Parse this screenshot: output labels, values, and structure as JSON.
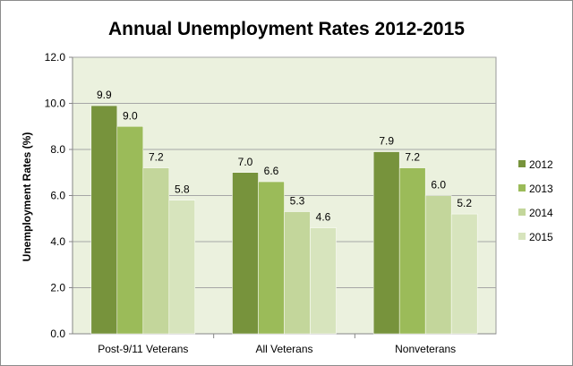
{
  "chart_data": {
    "type": "bar",
    "title": "Annual Unemployment Rates 2012-2015",
    "xlabel": "",
    "ylabel": "Unemployment Rates (%)",
    "ylim": [
      0,
      12
    ],
    "yticks": [
      "0.0",
      "2.0",
      "4.0",
      "6.0",
      "8.0",
      "10.0",
      "12.0"
    ],
    "grid": true,
    "legend_position": "right",
    "plot_background": "#ebf1de",
    "categories": [
      "Post-9/11 Veterans",
      "All Veterans",
      "Nonveterans"
    ],
    "series": [
      {
        "name": "2012",
        "color": "#77933c",
        "values": [
          9.9,
          7.0,
          7.9
        ],
        "labels": [
          "9.9",
          "7.0",
          "7.9"
        ]
      },
      {
        "name": "2013",
        "color": "#9bbb59",
        "values": [
          9.0,
          6.6,
          7.2
        ],
        "labels": [
          "9.0",
          "6.6",
          "7.2"
        ]
      },
      {
        "name": "2014",
        "color": "#c3d69b",
        "values": [
          7.2,
          5.3,
          6.0
        ],
        "labels": [
          "7.2",
          "5.3",
          "6.0"
        ]
      },
      {
        "name": "2015",
        "color": "#d7e4bd",
        "values": [
          5.8,
          4.6,
          5.2
        ],
        "labels": [
          "5.8",
          "4.6",
          "5.2"
        ]
      }
    ]
  }
}
